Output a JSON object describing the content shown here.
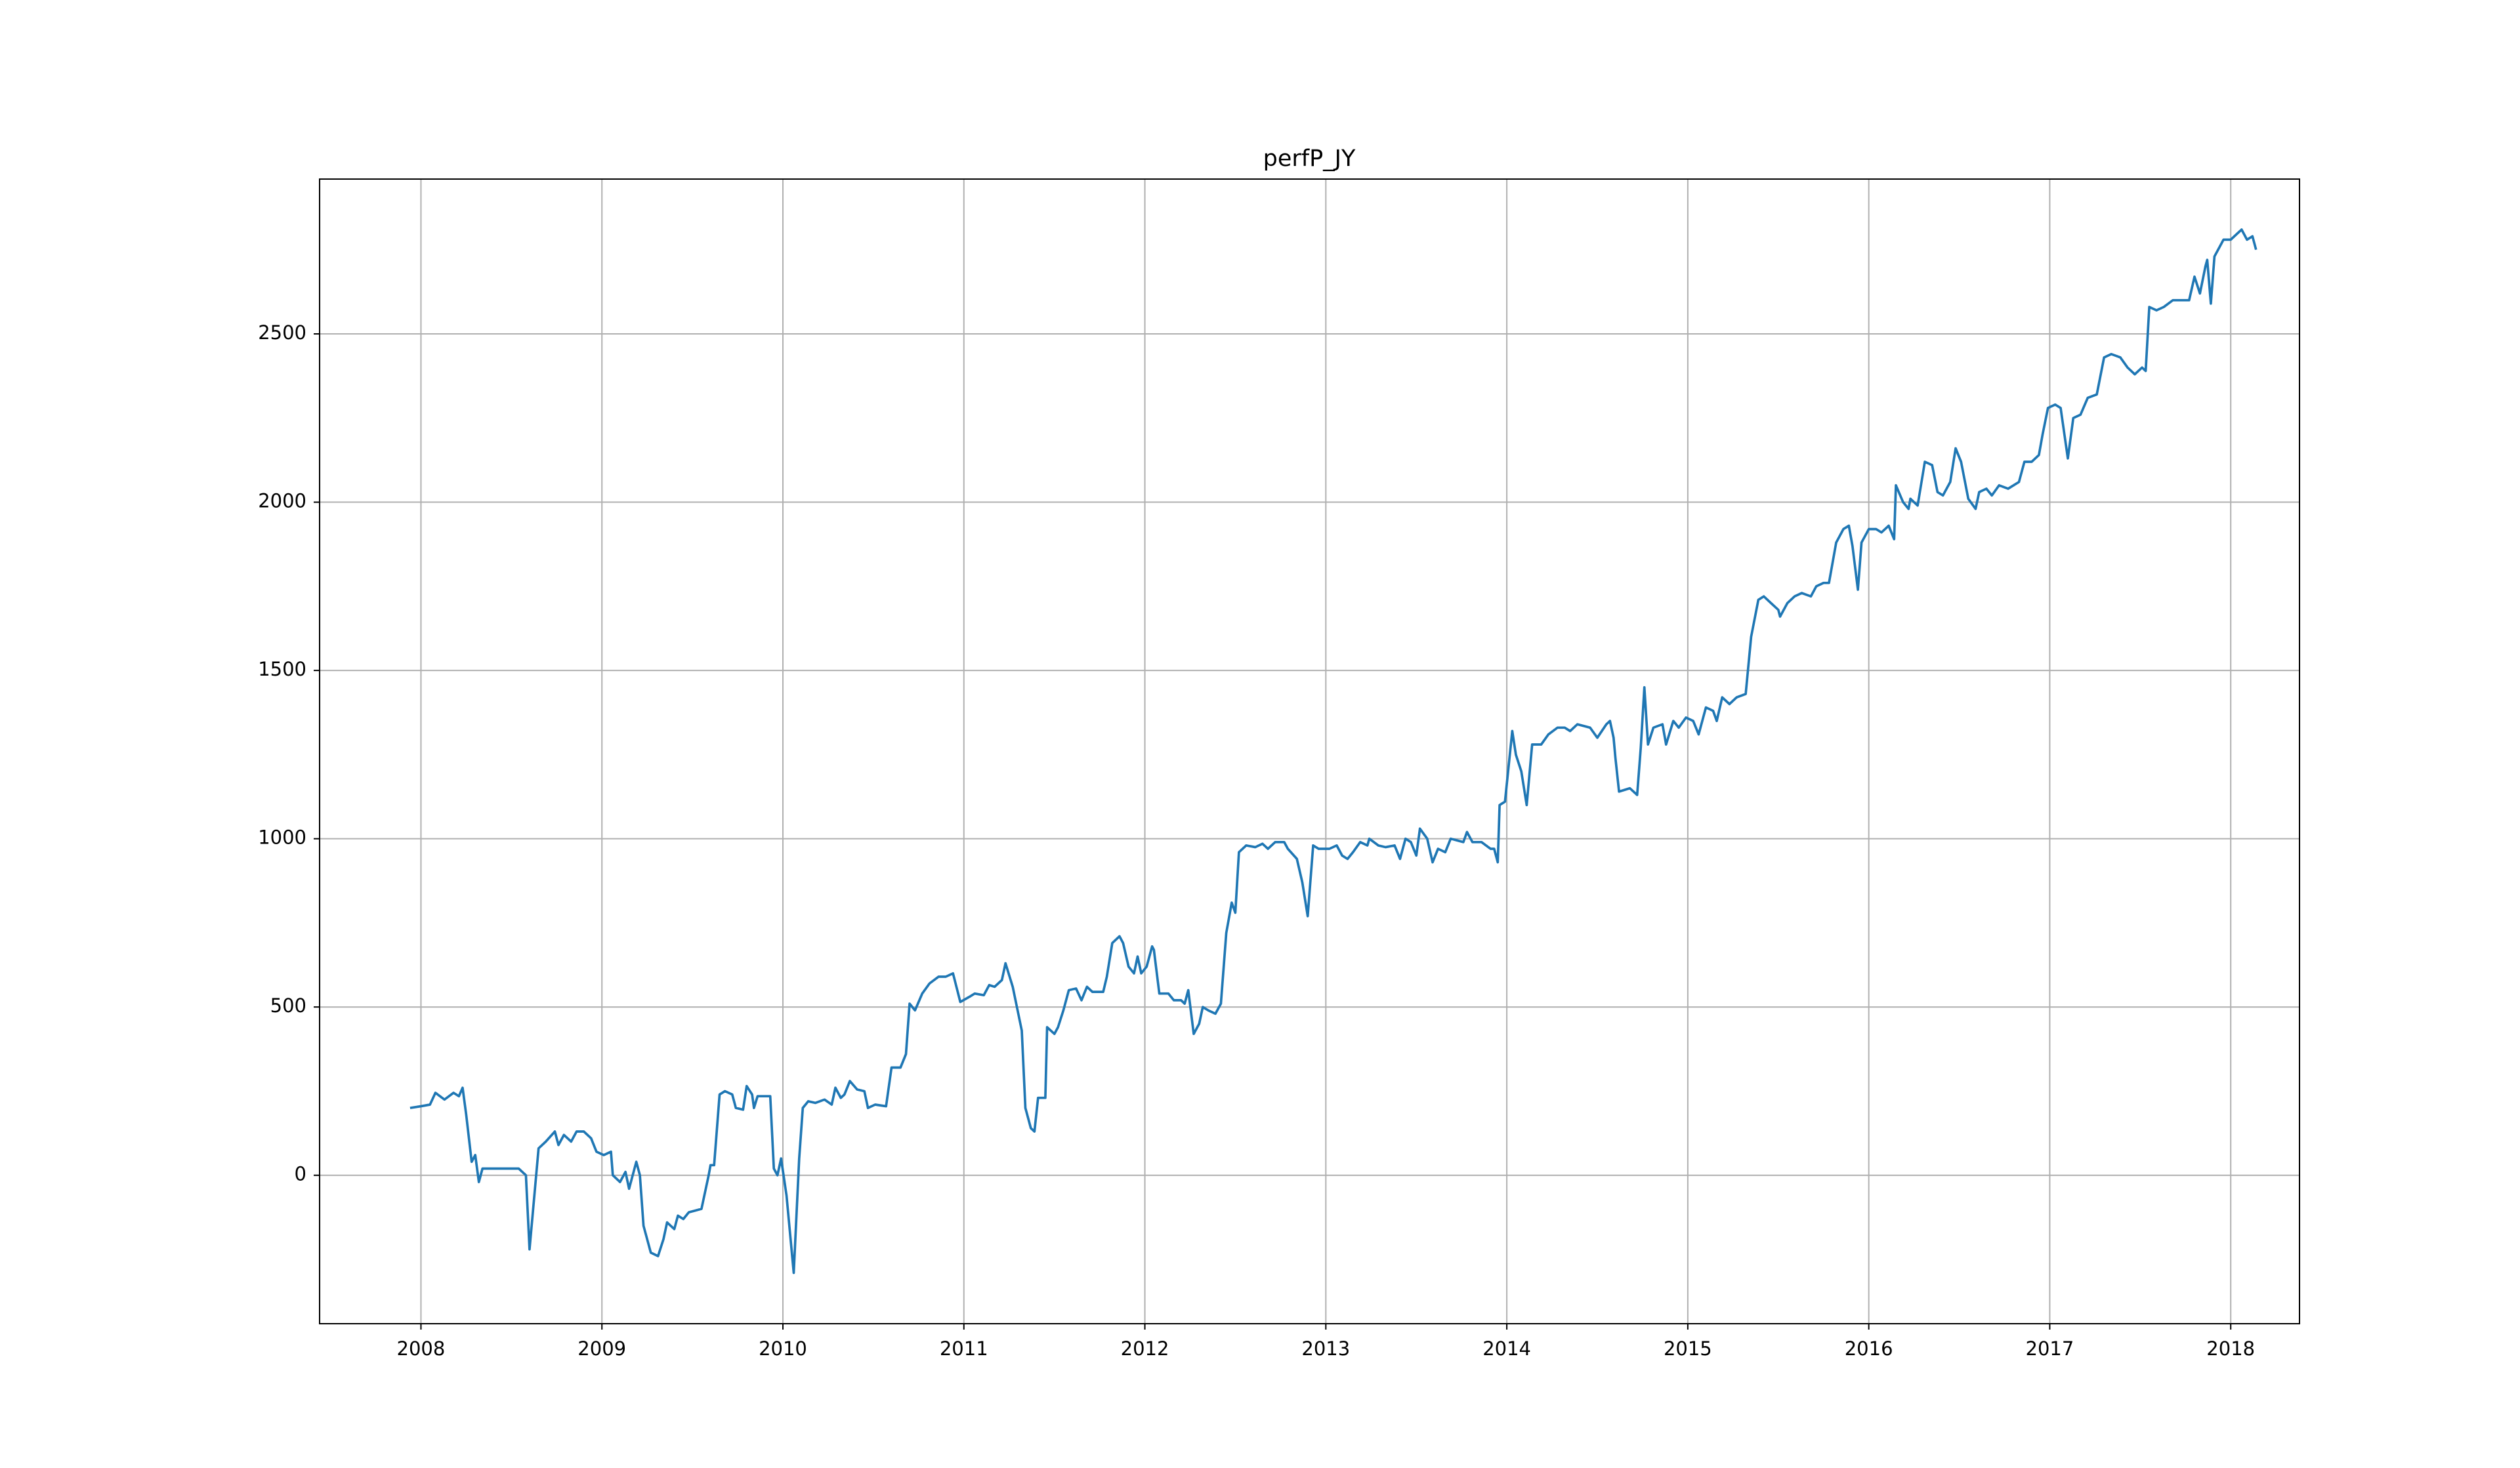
{
  "chart_data": {
    "type": "line",
    "title": "perfP_JY",
    "color": "#1f77b4",
    "grid": true,
    "xlim": [
      2007.44,
      2018.38
    ],
    "xticks": [
      2008,
      2009,
      2010,
      2011,
      2012,
      2013,
      2014,
      2015,
      2016,
      2017,
      2018
    ],
    "ylim": [
      -441,
      2960
    ],
    "yticks": [
      0,
      500,
      1000,
      1500,
      2000,
      2500
    ],
    "x": [
      2007.94,
      2008.0,
      2008.05,
      2008.08,
      2008.13,
      2008.18,
      2008.21,
      2008.23,
      2008.25,
      2008.28,
      2008.3,
      2008.32,
      2008.34,
      2008.54,
      2008.58,
      2008.6,
      2008.65,
      2008.69,
      2008.74,
      2008.76,
      2008.79,
      2008.83,
      2008.86,
      2008.9,
      2008.94,
      2008.97,
      2009.01,
      2009.05,
      2009.06,
      2009.1,
      2009.13,
      2009.15,
      2009.19,
      2009.21,
      2009.23,
      2009.27,
      2009.31,
      2009.34,
      2009.36,
      2009.4,
      2009.42,
      2009.45,
      2009.48,
      2009.55,
      2009.59,
      2009.6,
      2009.62,
      2009.65,
      2009.68,
      2009.72,
      2009.74,
      2009.78,
      2009.8,
      2009.83,
      2009.84,
      2009.86,
      2009.93,
      2009.95,
      2009.97,
      2009.99,
      2010.02,
      2010.06,
      2010.09,
      2010.11,
      2010.14,
      2010.18,
      2010.23,
      2010.27,
      2010.29,
      2010.32,
      2010.34,
      2010.37,
      2010.41,
      2010.45,
      2010.47,
      2010.51,
      2010.57,
      2010.6,
      2010.65,
      2010.68,
      2010.7,
      2010.73,
      2010.77,
      2010.81,
      2010.86,
      2010.9,
      2010.94,
      2010.98,
      2011.03,
      2011.06,
      2011.11,
      2011.14,
      2011.17,
      2011.21,
      2011.23,
      2011.27,
      2011.32,
      2011.34,
      2011.37,
      2011.39,
      2011.41,
      2011.45,
      2011.46,
      2011.5,
      2011.52,
      2011.55,
      2011.58,
      2011.62,
      2011.65,
      2011.68,
      2011.71,
      2011.77,
      2011.79,
      2011.82,
      2011.86,
      2011.88,
      2011.91,
      2011.94,
      2011.96,
      2011.98,
      2012.01,
      2012.04,
      2012.05,
      2012.08,
      2012.13,
      2012.16,
      2012.2,
      2012.22,
      2012.24,
      2012.27,
      2012.3,
      2012.32,
      2012.35,
      2012.39,
      2012.42,
      2012.45,
      2012.48,
      2012.5,
      2012.52,
      2012.56,
      2012.61,
      2012.65,
      2012.68,
      2012.72,
      2012.77,
      2012.79,
      2012.84,
      2012.87,
      2012.9,
      2012.93,
      2012.96,
      2013.02,
      2013.06,
      2013.09,
      2013.12,
      2013.15,
      2013.19,
      2013.23,
      2013.24,
      2013.29,
      2013.33,
      2013.38,
      2013.41,
      2013.44,
      2013.47,
      2013.5,
      2013.52,
      2013.56,
      2013.59,
      2013.62,
      2013.66,
      2013.69,
      2013.76,
      2013.78,
      2013.81,
      2013.86,
      2013.91,
      2013.93,
      2013.95,
      2013.96,
      2013.99,
      2014.03,
      2014.05,
      2014.08,
      2014.11,
      2014.14,
      2014.19,
      2014.23,
      2014.28,
      2014.32,
      2014.35,
      2014.39,
      2014.46,
      2014.5,
      2014.55,
      2014.57,
      2014.59,
      2014.6,
      2014.62,
      2014.68,
      2014.72,
      2014.74,
      2014.76,
      2014.78,
      2014.81,
      2014.86,
      2014.88,
      2014.92,
      2014.95,
      2014.99,
      2015.03,
      2015.06,
      2015.1,
      2015.14,
      2015.16,
      2015.19,
      2015.23,
      2015.27,
      2015.32,
      2015.35,
      2015.39,
      2015.42,
      2015.46,
      2015.5,
      2015.51,
      2015.55,
      2015.59,
      2015.63,
      2015.68,
      2015.71,
      2015.75,
      2015.78,
      2015.82,
      2015.86,
      2015.89,
      2015.91,
      2015.94,
      2015.96,
      2016.0,
      2016.04,
      2016.07,
      2016.11,
      2016.14,
      2016.15,
      2016.19,
      2016.22,
      2016.23,
      2016.27,
      2016.31,
      2016.35,
      2016.38,
      2016.41,
      2016.45,
      2016.48,
      2016.51,
      2016.55,
      2016.59,
      2016.61,
      2016.65,
      2016.68,
      2016.72,
      2016.77,
      2016.83,
      2016.86,
      2016.9,
      2016.94,
      2016.96,
      2016.99,
      2017.03,
      2017.06,
      2017.1,
      2017.13,
      2017.17,
      2017.21,
      2017.26,
      2017.3,
      2017.34,
      2017.39,
      2017.43,
      2017.47,
      2017.51,
      2017.53,
      2017.55,
      2017.59,
      2017.63,
      2017.68,
      2017.72,
      2017.77,
      2017.8,
      2017.83,
      2017.86,
      2017.87,
      2017.89,
      2017.91,
      2017.94,
      2017.96,
      2018.0,
      2018.04,
      2018.06,
      2018.09,
      2018.12,
      2018.14
    ],
    "values": [
      200,
      205,
      210,
      245,
      225,
      245,
      235,
      260,
      180,
      40,
      60,
      -20,
      20,
      20,
      0,
      -220,
      80,
      100,
      130,
      90,
      120,
      100,
      130,
      130,
      110,
      70,
      60,
      70,
      0,
      -20,
      10,
      -40,
      40,
      0,
      -150,
      -230,
      -240,
      -190,
      -140,
      -160,
      -120,
      -130,
      -110,
      -100,
      0,
      30,
      30,
      240,
      250,
      240,
      200,
      195,
      265,
      240,
      200,
      235,
      235,
      20,
      0,
      50,
      -60,
      -290,
      50,
      200,
      220,
      215,
      225,
      210,
      260,
      230,
      240,
      280,
      255,
      250,
      200,
      210,
      205,
      320,
      320,
      360,
      510,
      490,
      540,
      570,
      590,
      590,
      600,
      515,
      530,
      540,
      535,
      565,
      560,
      580,
      630,
      560,
      430,
      200,
      140,
      130,
      230,
      230,
      440,
      420,
      440,
      490,
      550,
      555,
      520,
      560,
      545,
      545,
      590,
      690,
      710,
      690,
      620,
      600,
      650,
      600,
      620,
      680,
      670,
      540,
      540,
      520,
      520,
      510,
      550,
      420,
      450,
      500,
      490,
      480,
      510,
      720,
      810,
      780,
      960,
      980,
      975,
      985,
      970,
      990,
      990,
      970,
      940,
      870,
      770,
      980,
      970,
      970,
      980,
      950,
      940,
      960,
      990,
      980,
      1000,
      980,
      975,
      980,
      940,
      1000,
      990,
      950,
      1030,
      1000,
      930,
      970,
      960,
      1000,
      990,
      1020,
      990,
      990,
      970,
      970,
      930,
      1100,
      1110,
      1320,
      1250,
      1200,
      1100,
      1280,
      1280,
      1310,
      1330,
      1330,
      1320,
      1340,
      1330,
      1300,
      1340,
      1350,
      1300,
      1240,
      1140,
      1150,
      1130,
      1270,
      1450,
      1280,
      1330,
      1340,
      1280,
      1350,
      1330,
      1360,
      1350,
      1310,
      1390,
      1380,
      1350,
      1420,
      1400,
      1420,
      1430,
      1600,
      1710,
      1720,
      1700,
      1680,
      1660,
      1700,
      1720,
      1730,
      1720,
      1750,
      1760,
      1760,
      1880,
      1920,
      1930,
      1870,
      1740,
      1880,
      1920,
      1920,
      1910,
      1930,
      1890,
      2050,
      2000,
      1980,
      2010,
      1990,
      2120,
      2110,
      2030,
      2020,
      2060,
      2160,
      2120,
      2010,
      1980,
      2030,
      2040,
      2020,
      2050,
      2040,
      2060,
      2120,
      2120,
      2140,
      2200,
      2280,
      2290,
      2280,
      2130,
      2250,
      2260,
      2310,
      2320,
      2430,
      2440,
      2430,
      2400,
      2380,
      2400,
      2390,
      2580,
      2570,
      2580,
      2600,
      2600,
      2600,
      2670,
      2620,
      2700,
      2720,
      2590,
      2730,
      2760,
      2780,
      2780,
      2800,
      2810,
      2780,
      2790,
      2750
    ]
  }
}
